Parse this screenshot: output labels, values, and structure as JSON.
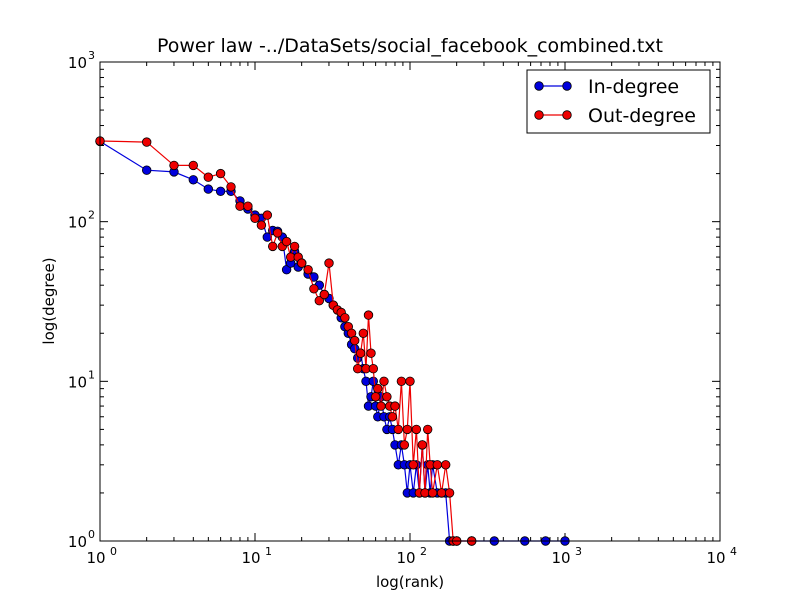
{
  "chart_data": {
    "type": "line",
    "title": "Power law -../DataSets/social_facebook_combined.txt",
    "xlabel": "log(rank)",
    "ylabel": "log(degree)",
    "xscale": "log",
    "yscale": "log",
    "xlim": [
      1,
      10000
    ],
    "ylim": [
      1,
      1000
    ],
    "grid": false,
    "legend_position": "top-right",
    "x_ticks": [
      {
        "value": 1,
        "base": "10",
        "exp": "0"
      },
      {
        "value": 10,
        "base": "10",
        "exp": "1"
      },
      {
        "value": 100,
        "base": "10",
        "exp": "2"
      },
      {
        "value": 1000,
        "base": "10",
        "exp": "3"
      },
      {
        "value": 10000,
        "base": "10",
        "exp": "4"
      }
    ],
    "y_ticks": [
      {
        "value": 1,
        "base": "10",
        "exp": "0"
      },
      {
        "value": 10,
        "base": "10",
        "exp": "1"
      },
      {
        "value": 100,
        "base": "10",
        "exp": "2"
      },
      {
        "value": 1000,
        "base": "10",
        "exp": "3"
      }
    ],
    "series": [
      {
        "name": "In-degree",
        "color": "#0000dd",
        "points": [
          [
            1,
            318
          ],
          [
            2,
            210
          ],
          [
            3,
            205
          ],
          [
            4,
            183
          ],
          [
            5,
            160
          ],
          [
            6,
            155
          ],
          [
            7,
            155
          ],
          [
            8,
            135
          ],
          [
            9,
            120
          ],
          [
            10,
            110
          ],
          [
            11,
            105
          ],
          [
            12,
            80
          ],
          [
            13,
            88
          ],
          [
            14,
            87
          ],
          [
            15,
            80
          ],
          [
            16,
            50
          ],
          [
            17,
            55
          ],
          [
            18,
            65
          ],
          [
            19,
            52
          ],
          [
            20,
            55
          ],
          [
            22,
            47
          ],
          [
            24,
            45
          ],
          [
            26,
            40
          ],
          [
            28,
            35
          ],
          [
            30,
            33
          ],
          [
            32,
            30
          ],
          [
            34,
            28
          ],
          [
            36,
            25
          ],
          [
            38,
            22
          ],
          [
            40,
            20
          ],
          [
            42,
            17
          ],
          [
            44,
            16
          ],
          [
            46,
            14
          ],
          [
            48,
            15
          ],
          [
            50,
            12
          ],
          [
            52,
            10
          ],
          [
            54,
            7
          ],
          [
            56,
            8
          ],
          [
            58,
            10
          ],
          [
            60,
            7
          ],
          [
            62,
            6
          ],
          [
            65,
            8
          ],
          [
            68,
            6
          ],
          [
            71,
            5
          ],
          [
            74,
            6
          ],
          [
            77,
            5
          ],
          [
            80,
            4
          ],
          [
            84,
            3
          ],
          [
            88,
            4
          ],
          [
            92,
            3
          ],
          [
            96,
            2
          ],
          [
            100,
            3
          ],
          [
            105,
            2
          ],
          [
            110,
            3
          ],
          [
            115,
            2
          ],
          [
            120,
            4
          ],
          [
            125,
            2
          ],
          [
            130,
            3
          ],
          [
            135,
            2
          ],
          [
            140,
            3
          ],
          [
            150,
            2
          ],
          [
            160,
            2
          ],
          [
            170,
            2
          ],
          [
            180,
            1
          ],
          [
            190,
            1
          ],
          [
            200,
            1
          ],
          [
            250,
            1
          ],
          [
            350,
            1
          ],
          [
            550,
            1
          ],
          [
            750,
            1
          ],
          [
            1000,
            1
          ]
        ]
      },
      {
        "name": "Out-degree",
        "color": "#ee0000",
        "points": [
          [
            1,
            320
          ],
          [
            2,
            315
          ],
          [
            3,
            225
          ],
          [
            4,
            225
          ],
          [
            5,
            190
          ],
          [
            6,
            200
          ],
          [
            7,
            165
          ],
          [
            8,
            125
          ],
          [
            9,
            125
          ],
          [
            10,
            105
          ],
          [
            11,
            95
          ],
          [
            12,
            110
          ],
          [
            13,
            70
          ],
          [
            14,
            85
          ],
          [
            15,
            70
          ],
          [
            16,
            75
          ],
          [
            17,
            60
          ],
          [
            18,
            70
          ],
          [
            19,
            60
          ],
          [
            20,
            55
          ],
          [
            22,
            50
          ],
          [
            24,
            38
          ],
          [
            26,
            32
          ],
          [
            28,
            35
          ],
          [
            30,
            55
          ],
          [
            32,
            30
          ],
          [
            34,
            28
          ],
          [
            36,
            27
          ],
          [
            38,
            25
          ],
          [
            40,
            22
          ],
          [
            42,
            20
          ],
          [
            44,
            18
          ],
          [
            46,
            12
          ],
          [
            48,
            15
          ],
          [
            50,
            20
          ],
          [
            52,
            12
          ],
          [
            54,
            26
          ],
          [
            56,
            15
          ],
          [
            58,
            12
          ],
          [
            60,
            8
          ],
          [
            62,
            9
          ],
          [
            65,
            7
          ],
          [
            68,
            10
          ],
          [
            71,
            8
          ],
          [
            74,
            7
          ],
          [
            77,
            6
          ],
          [
            80,
            7
          ],
          [
            84,
            5
          ],
          [
            88,
            10
          ],
          [
            92,
            4
          ],
          [
            96,
            5
          ],
          [
            100,
            10
          ],
          [
            105,
            3
          ],
          [
            110,
            5
          ],
          [
            115,
            2
          ],
          [
            120,
            4
          ],
          [
            125,
            2
          ],
          [
            130,
            5
          ],
          [
            135,
            3
          ],
          [
            140,
            2
          ],
          [
            150,
            3
          ],
          [
            160,
            2
          ],
          [
            170,
            3
          ],
          [
            180,
            2
          ],
          [
            190,
            1
          ],
          [
            200,
            1
          ],
          [
            250,
            1
          ]
        ]
      }
    ]
  }
}
